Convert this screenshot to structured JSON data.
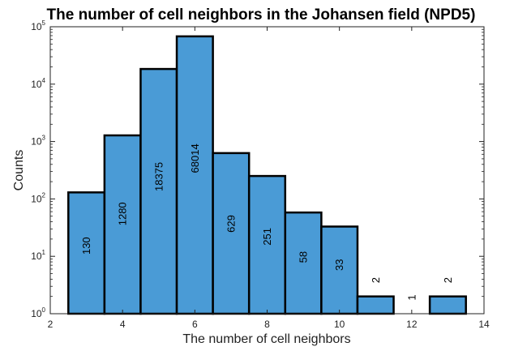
{
  "chart_data": {
    "type": "bar",
    "title": "The number of cell neighbors in the Johansen field (NPD5)",
    "xlabel": "The number of cell neighbors",
    "ylabel": "Counts",
    "yscale": "log",
    "xlim": [
      2,
      14
    ],
    "ylim": [
      1,
      100000
    ],
    "bar_color": "#4a9bd6",
    "bar_edge_color": "#000000",
    "x": [
      3,
      4,
      5,
      6,
      7,
      8,
      9,
      10,
      11,
      12,
      13
    ],
    "values": [
      130,
      1280,
      18375,
      68014,
      629,
      251,
      58,
      33,
      2,
      1,
      2
    ],
    "data_labels": [
      "130",
      "1280",
      "18375",
      "68014",
      "629",
      "251",
      "58",
      "33",
      "2",
      "1",
      "2"
    ],
    "x_ticks": [
      {
        "value": 2,
        "label": "2"
      },
      {
        "value": 4,
        "label": "4"
      },
      {
        "value": 6,
        "label": "6"
      },
      {
        "value": 8,
        "label": "8"
      },
      {
        "value": 10,
        "label": "10"
      },
      {
        "value": 12,
        "label": "12"
      },
      {
        "value": 14,
        "label": "14"
      }
    ],
    "y_ticks": [
      {
        "value": 1,
        "base": "10",
        "exp": "0"
      },
      {
        "value": 10,
        "base": "10",
        "exp": "1"
      },
      {
        "value": 100,
        "base": "10",
        "exp": "2"
      },
      {
        "value": 1000,
        "base": "10",
        "exp": "3"
      },
      {
        "value": 10000,
        "base": "10",
        "exp": "4"
      },
      {
        "value": 100000,
        "base": "10",
        "exp": "5"
      }
    ]
  }
}
